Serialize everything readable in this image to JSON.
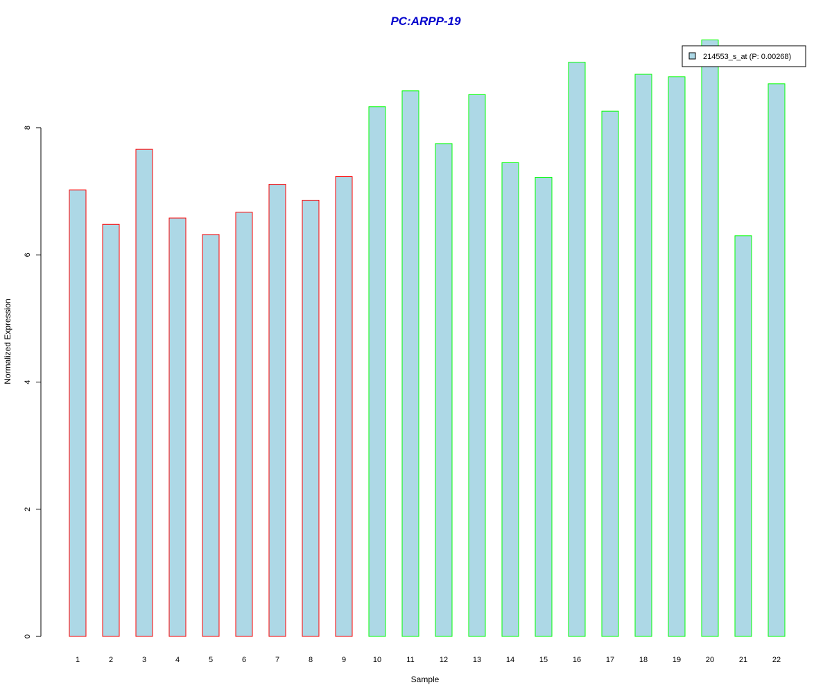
{
  "chart_data": {
    "type": "bar",
    "title": "PC:ARPP-19",
    "xlabel": "Sample",
    "ylabel": "Normalized Expression",
    "categories": [
      "1",
      "2",
      "3",
      "4",
      "5",
      "6",
      "7",
      "8",
      "9",
      "10",
      "11",
      "12",
      "13",
      "14",
      "15",
      "16",
      "17",
      "18",
      "19",
      "20",
      "21",
      "22"
    ],
    "series": [
      {
        "name": "214553_s_at (P: 0.00268)",
        "values": [
          7.02,
          6.48,
          7.66,
          6.58,
          6.32,
          6.67,
          7.11,
          6.86,
          7.23,
          8.33,
          8.58,
          7.75,
          8.52,
          7.45,
          7.22,
          9.03,
          8.26,
          8.84,
          8.8,
          9.38,
          6.3,
          8.69
        ]
      }
    ],
    "yticks": [
      0,
      2,
      4,
      6,
      8
    ],
    "ylim": [
      0,
      9.7
    ],
    "legend_position": "top-right",
    "grid": false,
    "colors": {
      "title": "#0000cc",
      "bar_fill": "#add8e6",
      "group_a_border": "#ff0000",
      "group_b_border": "#00ff00"
    },
    "group_a_count": 9
  }
}
